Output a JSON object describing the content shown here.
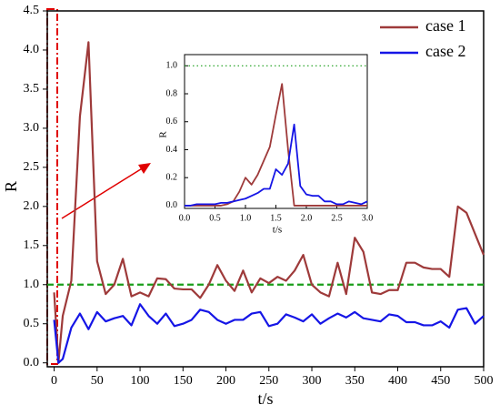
{
  "chart_data": [
    {
      "type": "line",
      "x": [
        0,
        5,
        10,
        20,
        30,
        40,
        50,
        60,
        70,
        80,
        90,
        100,
        110,
        120,
        130,
        140,
        150,
        160,
        170,
        180,
        190,
        200,
        210,
        220,
        230,
        240,
        250,
        260,
        270,
        280,
        290,
        300,
        310,
        320,
        330,
        340,
        350,
        360,
        370,
        380,
        390,
        400,
        410,
        420,
        430,
        440,
        450,
        460,
        470,
        480,
        490,
        500
      ],
      "series": [
        {
          "name": "case 1",
          "color": "#9e3a3a",
          "values": [
            0.9,
            0.0,
            0.6,
            1.05,
            3.15,
            4.1,
            1.3,
            0.88,
            1.0,
            1.33,
            0.85,
            0.9,
            0.85,
            1.08,
            1.07,
            0.95,
            0.94,
            0.94,
            0.83,
            1.0,
            1.25,
            1.05,
            0.92,
            1.18,
            0.9,
            1.08,
            1.02,
            1.1,
            1.05,
            1.18,
            1.38,
            1.0,
            0.9,
            0.85,
            1.28,
            0.88,
            1.6,
            1.42,
            0.9,
            0.88,
            0.93,
            0.93,
            1.28,
            1.28,
            1.22,
            1.2,
            1.2,
            1.1,
            2.0,
            1.92,
            1.65,
            1.38
          ]
        },
        {
          "name": "case 2",
          "color": "#1515e6",
          "values": [
            0.55,
            0.0,
            0.05,
            0.45,
            0.63,
            0.43,
            0.65,
            0.53,
            0.57,
            0.6,
            0.48,
            0.75,
            0.6,
            0.5,
            0.63,
            0.47,
            0.5,
            0.55,
            0.68,
            0.65,
            0.55,
            0.5,
            0.55,
            0.55,
            0.63,
            0.65,
            0.47,
            0.5,
            0.62,
            0.58,
            0.53,
            0.62,
            0.5,
            0.57,
            0.63,
            0.58,
            0.65,
            0.57,
            0.55,
            0.53,
            0.62,
            0.6,
            0.52,
            0.52,
            0.48,
            0.48,
            0.53,
            0.45,
            0.68,
            0.7,
            0.5,
            0.6
          ]
        }
      ],
      "reference_line": {
        "value": 1,
        "color": "#1a9e1a",
        "style": "dashed"
      },
      "x_label": "t/s",
      "y_label": "R",
      "xlim": [
        -8,
        500
      ],
      "ylim": [
        -0.05,
        4.5
      ],
      "xticks": [
        0,
        50,
        100,
        150,
        200,
        250,
        300,
        350,
        400,
        450,
        500
      ],
      "yticks": [
        {
          "value": 0,
          "label": "0.0"
        },
        {
          "value": 0.5,
          "label": "0.5"
        },
        {
          "value": 1,
          "label": "1.0"
        },
        {
          "value": 1.5,
          "label": "1.5"
        },
        {
          "value": 2,
          "label": "2.0"
        },
        {
          "value": 2.5,
          "label": "2.5"
        },
        {
          "value": 3,
          "label": "3.0"
        },
        {
          "value": 3.5,
          "label": "3.5"
        },
        {
          "value": 4,
          "label": "4.0"
        },
        {
          "value": 4.5,
          "label": "4.5"
        }
      ],
      "legend": "upper right"
    },
    {
      "type": "line",
      "x": [
        0,
        0.1,
        0.2,
        0.3,
        0.4,
        0.5,
        0.6,
        0.7,
        0.8,
        0.9,
        1.0,
        1.1,
        1.2,
        1.3,
        1.4,
        1.5,
        1.6,
        1.7,
        1.8,
        1.9,
        2.0,
        2.1,
        2.2,
        2.3,
        2.4,
        2.5,
        2.6,
        2.7,
        2.8,
        2.9,
        3.0
      ],
      "series": [
        {
          "name": "case 1",
          "color": "#9e3a3a",
          "values": [
            0,
            0,
            0,
            0,
            0,
            0,
            0,
            0.01,
            0.03,
            0.1,
            0.2,
            0.15,
            0.22,
            0.32,
            0.42,
            0.65,
            0.87,
            0.4,
            0,
            0,
            0,
            0,
            0,
            0,
            0,
            0,
            0,
            0,
            0,
            0,
            0
          ]
        },
        {
          "name": "case 2",
          "color": "#1515e6",
          "values": [
            0,
            0,
            0.01,
            0.01,
            0.01,
            0.01,
            0.02,
            0.02,
            0.03,
            0.04,
            0.05,
            0.07,
            0.09,
            0.12,
            0.12,
            0.26,
            0.22,
            0.3,
            0.58,
            0.14,
            0.08,
            0.07,
            0.07,
            0.03,
            0.03,
            0.01,
            0.01,
            0.03,
            0.02,
            0.01,
            0.03
          ]
        }
      ],
      "reference_line": {
        "value": 1,
        "color": "#1a9e1a",
        "style": "dotted"
      },
      "x_label": "t/s",
      "y_label": "R",
      "xlim": [
        0,
        3
      ],
      "ylim": [
        -0.02,
        1.08
      ],
      "xticks": [
        {
          "value": 0,
          "label": "0.0"
        },
        {
          "value": 0.5,
          "label": "0.5"
        },
        {
          "value": 1,
          "label": "1.0"
        },
        {
          "value": 1.5,
          "label": "1.5"
        },
        {
          "value": 2,
          "label": "2.0"
        },
        {
          "value": 2.5,
          "label": "2.5"
        },
        {
          "value": 3,
          "label": "3.0"
        }
      ],
      "yticks": [
        {
          "value": 0,
          "label": "0.0"
        },
        {
          "value": 0.2,
          "label": "0.2"
        },
        {
          "value": 0.4,
          "label": "0.4"
        },
        {
          "value": 0.6,
          "label": "0.6"
        },
        {
          "value": 0.8,
          "label": "0.8"
        },
        {
          "value": 1,
          "label": "1.0"
        }
      ]
    }
  ]
}
